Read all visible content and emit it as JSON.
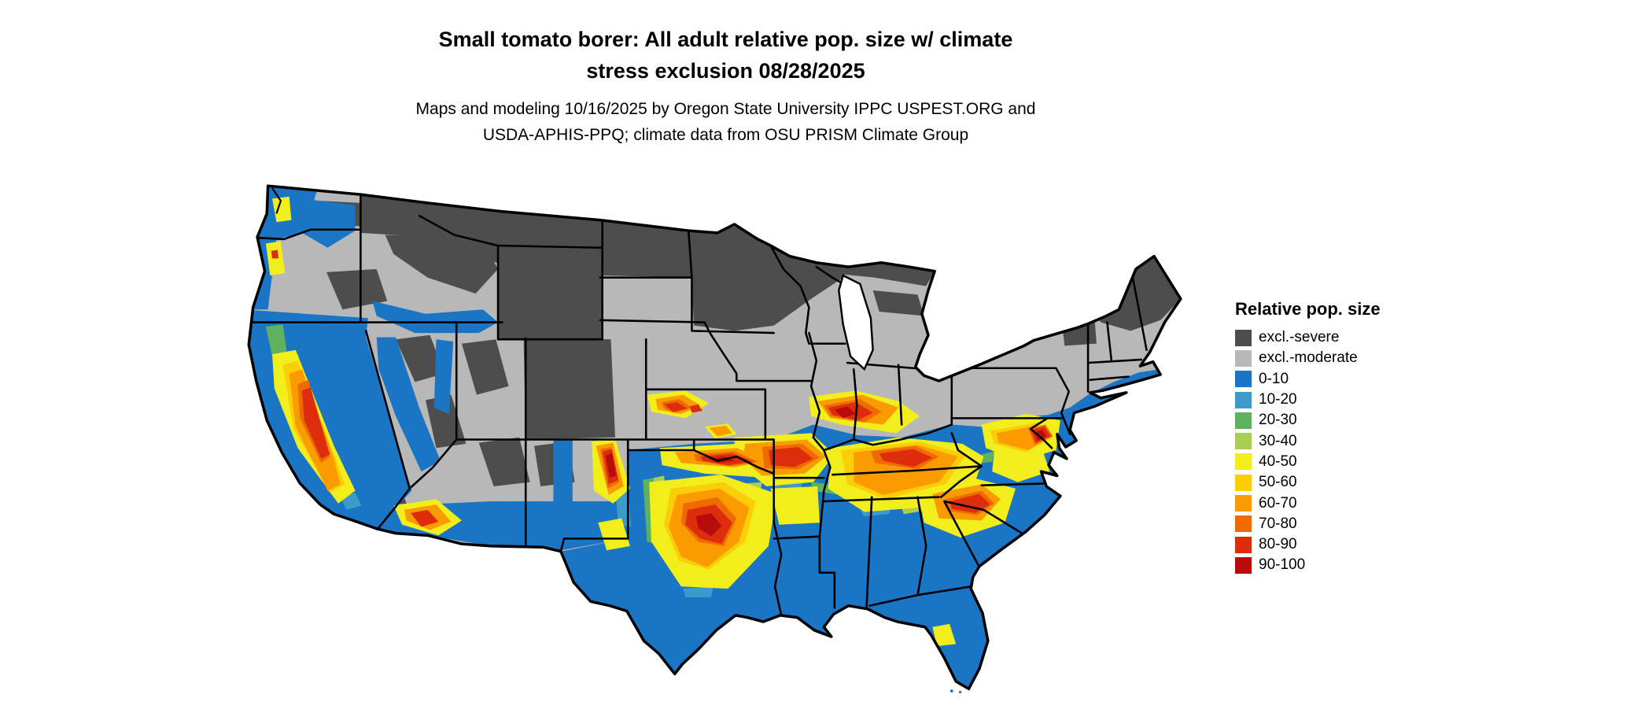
{
  "title": {
    "line1": "Small tomato borer: All adult relative pop. size w/ climate",
    "line2": "stress exclusion 08/28/2025"
  },
  "subtitle": {
    "line1": "Maps and modeling 10/16/2025 by Oregon State University IPPC USPEST.ORG and",
    "line2": "USDA-APHIS-PPQ; climate data from OSU PRISM Climate Group"
  },
  "legend": {
    "title": "Relative pop. size",
    "items": [
      {
        "label": "excl.-severe",
        "color": "#4d4d4d"
      },
      {
        "label": "excl.-moderate",
        "color": "#b8b8b8"
      },
      {
        "label": "0-10",
        "color": "#1a75c4"
      },
      {
        "label": "10-20",
        "color": "#3d9bcc"
      },
      {
        "label": "20-30",
        "color": "#5eb25e"
      },
      {
        "label": "30-40",
        "color": "#a8cf54"
      },
      {
        "label": "40-50",
        "color": "#f2ee1c"
      },
      {
        "label": "50-60",
        "color": "#fbce07"
      },
      {
        "label": "60-70",
        "color": "#fa9c00"
      },
      {
        "label": "70-80",
        "color": "#ef6a00"
      },
      {
        "label": "80-90",
        "color": "#de2d0c"
      },
      {
        "label": "90-100",
        "color": "#b80c0c"
      }
    ]
  },
  "map": {
    "area": "Continental United States",
    "style": "choropleth raster with black state borders",
    "outline_color": "#000000",
    "water_color": "#ffffff",
    "distribution": {
      "excl_severe": "northern tier: Montana, North Dakota, Minnesota, northern Wisconsin, upper Michigan, Wyoming, Rocky Mountains, high-elevation Great Basin, Adirondacks, northern New England",
      "excl_moderate": "central band: South Dakota, Nebraska, Kansas, Iowa, northern Missouri, Illinois, Indiana, Ohio, Pennsylvania, upstate New York, plateaus of the interior West",
      "pop_0_10": "southern United States, Gulf coast, Florida, Atlantic coastal plain to southern New England, California, Pacific Northwest lowlands, Snake River plain, southern Arizona and New Mexico",
      "pop_40_100": "mottled yellow-orange-red band across central Texas, the Red River valley, Arkansas and southern Missouri, Kentucky and middle Tennessee, central Mississippi-Alabama-Georgia, Carolinas piedmont, Virginia-Maryland, plus the California Central Valley and scattered western valleys"
    }
  }
}
